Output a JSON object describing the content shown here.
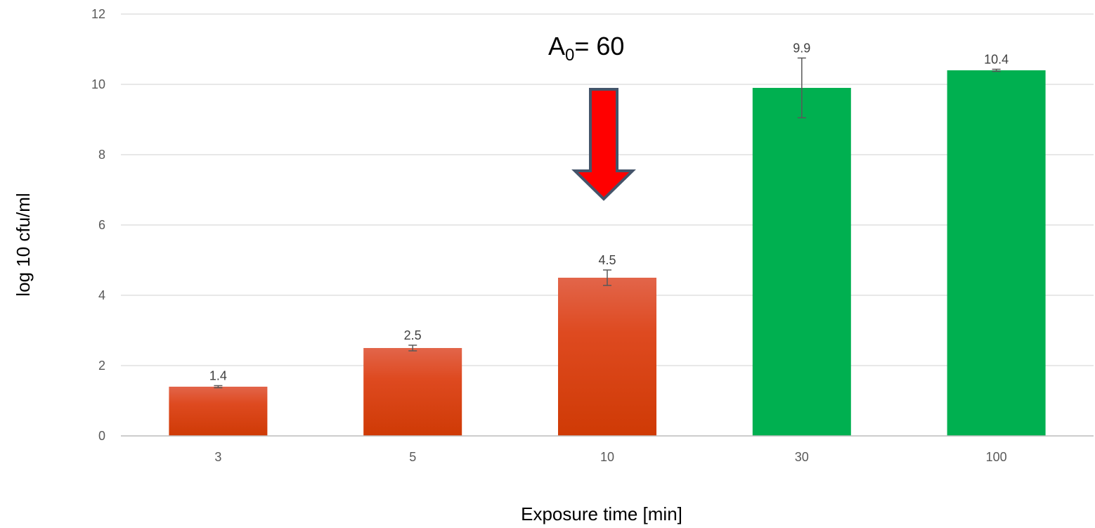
{
  "chart_data": {
    "type": "bar",
    "categories": [
      "3",
      "5",
      "10",
      "30",
      "100"
    ],
    "values": [
      1.4,
      2.5,
      4.5,
      9.9,
      10.4
    ],
    "error": [
      0.03,
      0.08,
      0.22,
      0.85,
      0.03
    ],
    "data_labels": [
      "1.4",
      "2.5",
      "4.5",
      "9.9",
      "10.4"
    ],
    "bar_colors": [
      "#d9461e",
      "#d9461e",
      "#d9461e",
      "#00b050",
      "#00b050"
    ],
    "title": "",
    "xlabel": "Exposure time [min]",
    "ylabel": "log 10 cfu/ml",
    "ylim": [
      0,
      12
    ],
    "yticks": [
      0,
      2,
      4,
      6,
      8,
      10,
      12
    ],
    "grid": true,
    "legend": "none",
    "annotation": {
      "text_main": "A",
      "text_sub": "0",
      "text_rest": "= 60",
      "points_to_category": "10",
      "arrow_icon": "down-arrow-icon",
      "arrow_color": "#ff0000"
    }
  }
}
